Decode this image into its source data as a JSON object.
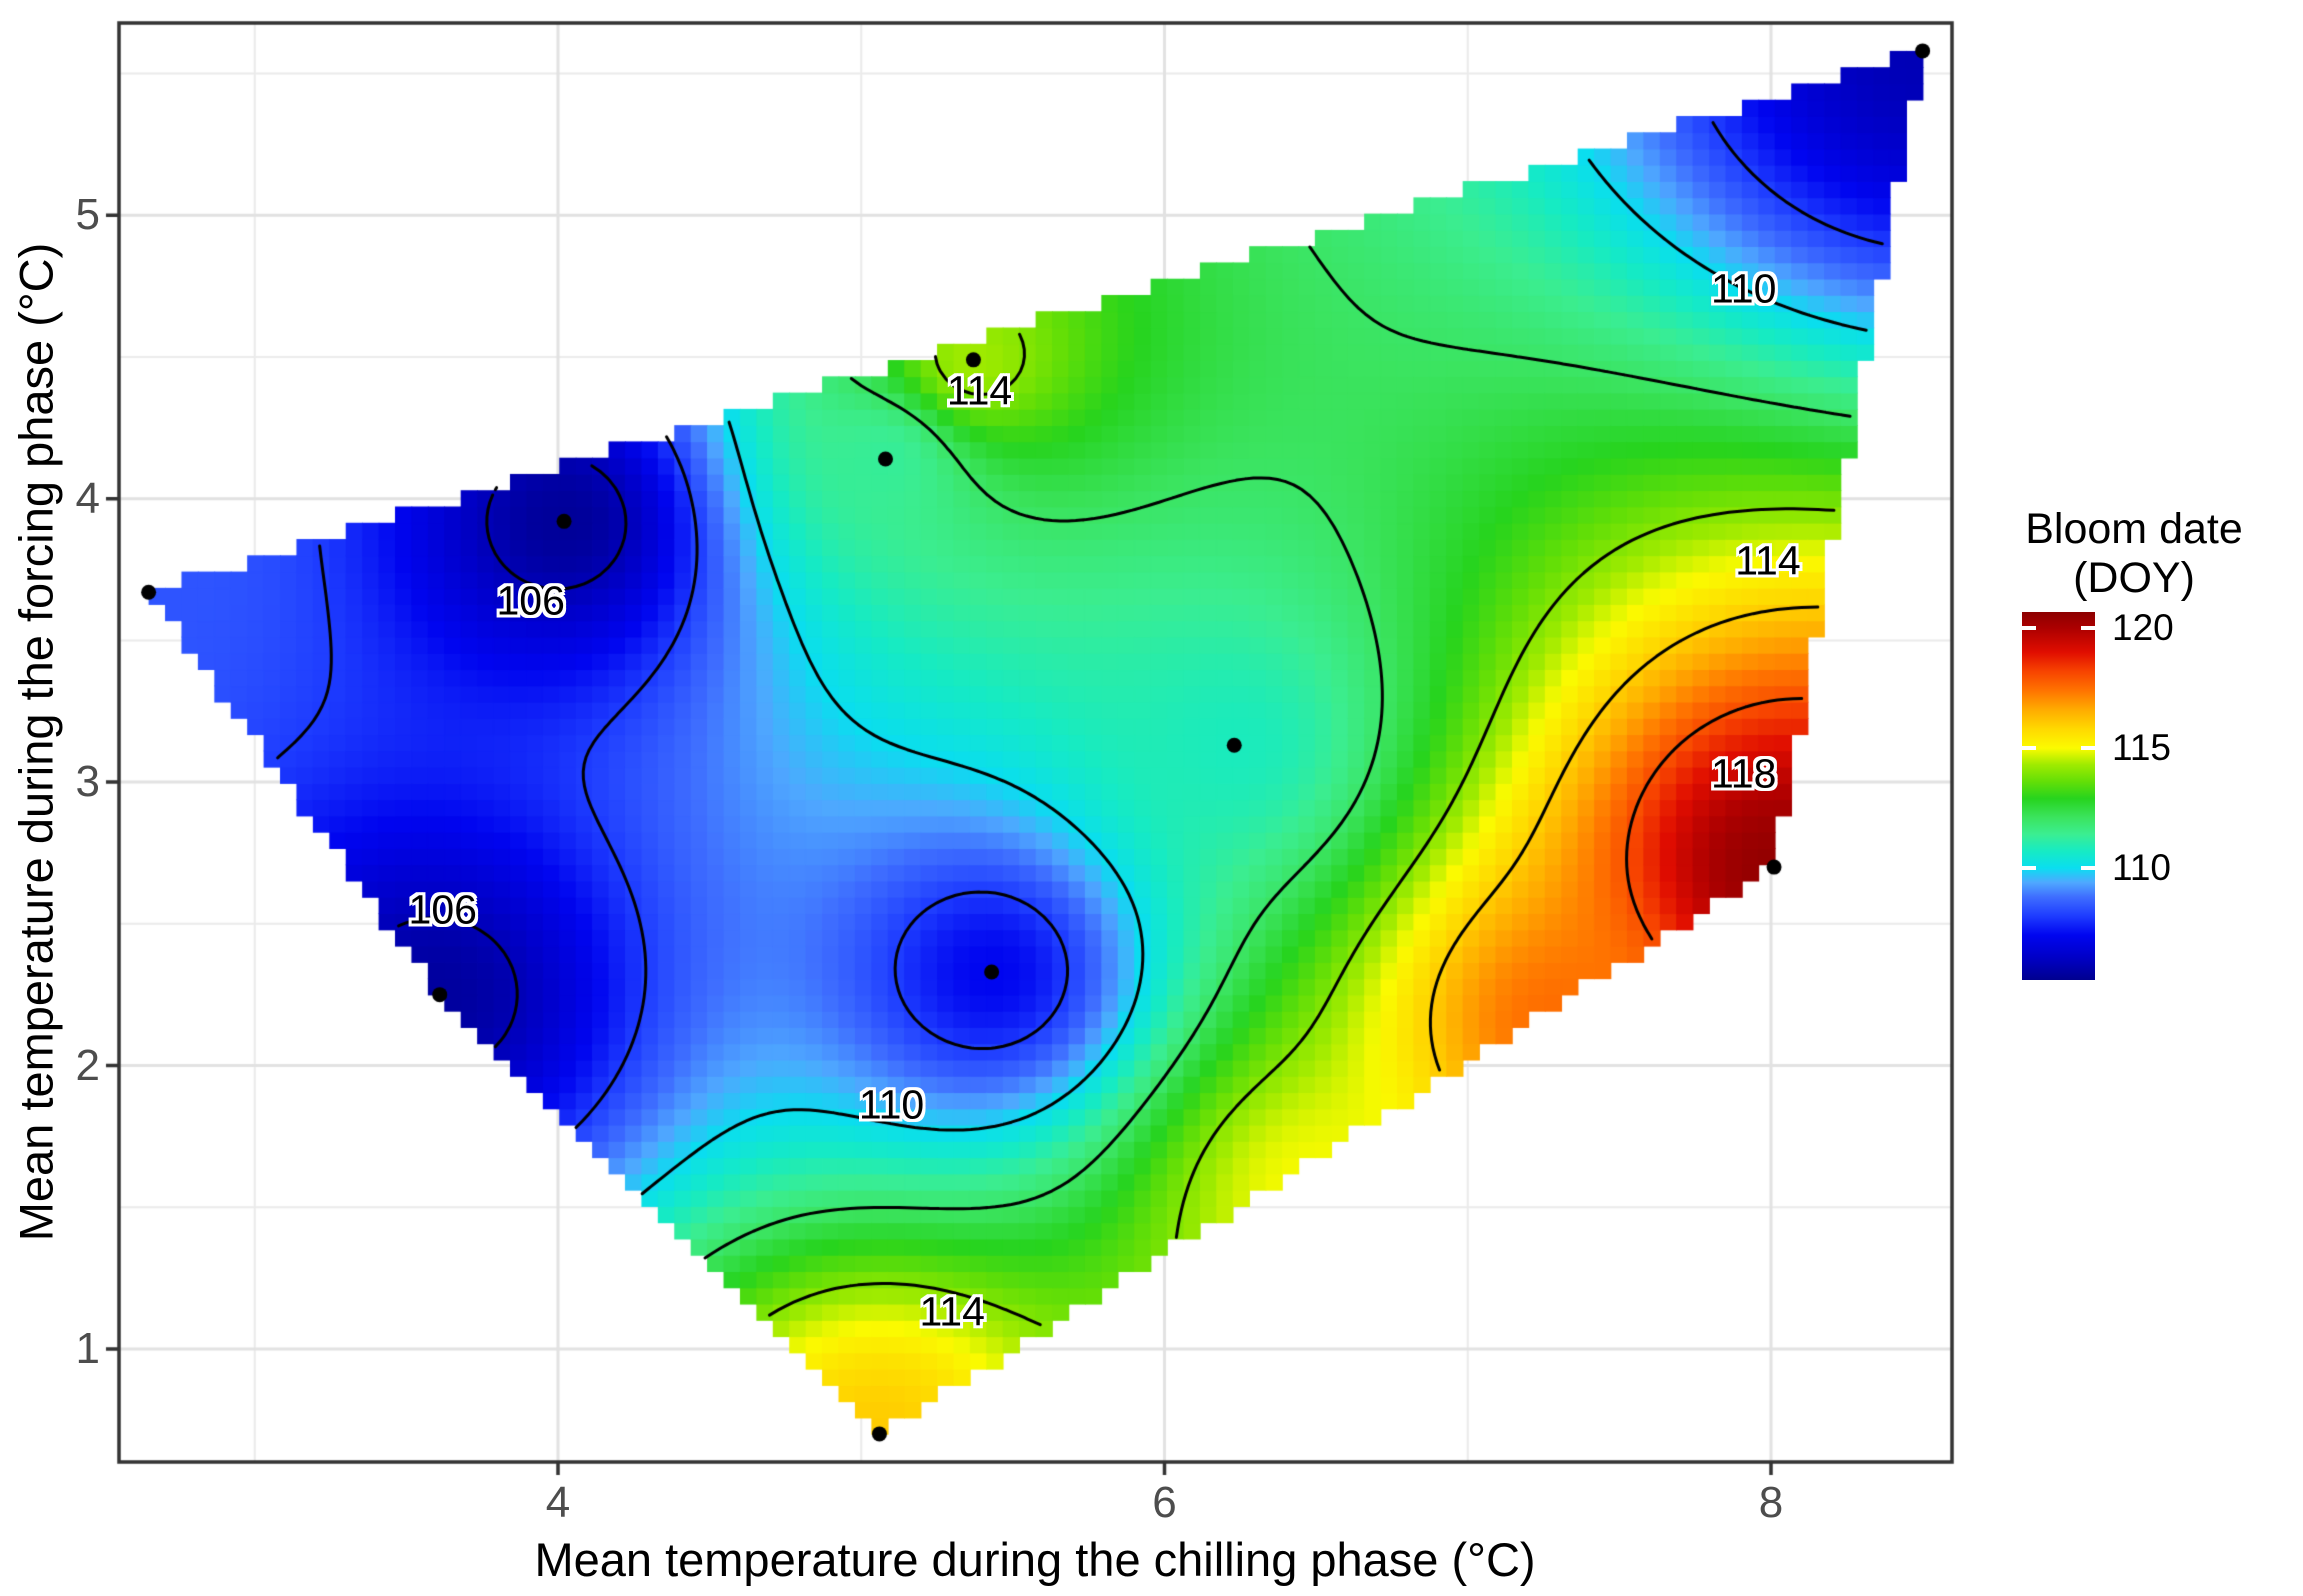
{
  "figure": {
    "description": "Filled contour heatmap of predicted bloom date (day of year) as a function of mean chilling-phase and forcing-phase temperatures"
  },
  "axes": {
    "x": {
      "title": "Mean temperature during the chilling phase (°C)",
      "ticks": [
        {
          "label": "4",
          "value": 4
        },
        {
          "label": "6",
          "value": 6
        },
        {
          "label": "8",
          "value": 8
        }
      ],
      "minor_ticks": [
        3,
        5,
        7
      ],
      "range": [
        2.55,
        8.6
      ]
    },
    "y": {
      "title": "Mean temperature during the forcing phase (°C)",
      "ticks": [
        {
          "label": "5",
          "value": 5
        },
        {
          "label": "4",
          "value": 4
        },
        {
          "label": "3",
          "value": 3
        },
        {
          "label": "2",
          "value": 2
        },
        {
          "label": "1",
          "value": 1
        }
      ],
      "minor_ticks": [
        1.5,
        2.5,
        3.5,
        4.5,
        5.5
      ],
      "range": [
        0.6,
        5.68
      ]
    }
  },
  "legend": {
    "title_line1": "Bloom date",
    "title_line2": "(DOY)",
    "ticks": [
      {
        "label": "120",
        "value": 120
      },
      {
        "label": "115",
        "value": 115
      },
      {
        "label": "110",
        "value": 110
      }
    ],
    "range": [
      105.33,
      120.67
    ]
  },
  "chart_data": {
    "type": "heatmap",
    "title": "",
    "xlabel": "Mean temperature during the chilling phase (°C)",
    "ylabel": "Mean temperature during the forcing phase (°C)",
    "zlabel": "Bloom date (DOY)",
    "xlim": [
      2.55,
      8.6
    ],
    "ylim": [
      0.6,
      5.68
    ],
    "zlim": [
      105.33,
      120.67
    ],
    "grid": "major and minor, light gray on white",
    "legend_position": "right",
    "points": [
      {
        "x": 2.65,
        "y": 3.67,
        "value": 108.4
      },
      {
        "x": 4.02,
        "y": 3.92,
        "value": 105.5
      },
      {
        "x": 5.08,
        "y": 4.14,
        "value": 111.3
      },
      {
        "x": 5.37,
        "y": 4.49,
        "value": 114.3
      },
      {
        "x": 8.5,
        "y": 5.58,
        "value": 106.0
      },
      {
        "x": 6.23,
        "y": 3.13,
        "value": 110.8
      },
      {
        "x": 8.01,
        "y": 2.7,
        "value": 120.5
      },
      {
        "x": 3.61,
        "y": 2.25,
        "value": 105.6
      },
      {
        "x": 5.43,
        "y": 2.33,
        "value": 107.2
      },
      {
        "x": 5.06,
        "y": 0.7,
        "value": 116.0
      }
    ],
    "surface_helpers": [
      {
        "x": 6.5,
        "y": 1.55,
        "value": 115.0
      },
      {
        "x": 7.3,
        "y": 2.15,
        "value": 117.5
      }
    ],
    "hull": [
      [
        2.65,
        3.67
      ],
      [
        8.5,
        5.58
      ],
      [
        8.01,
        2.7
      ],
      [
        5.06,
        0.7
      ],
      [
        3.61,
        2.25
      ]
    ],
    "idw_power": 2.2,
    "contour_levels": [
      106,
      108,
      110,
      112,
      114,
      116,
      118
    ],
    "contour_labels": [
      {
        "text": "106",
        "x": 3.91,
        "y": 3.64
      },
      {
        "text": "106",
        "x": 3.62,
        "y": 2.55
      },
      {
        "text": "110",
        "x": 5.1,
        "y": 1.86
      },
      {
        "text": "114",
        "x": 5.3,
        "y": 1.13
      },
      {
        "text": "114",
        "x": 5.39,
        "y": 4.38
      },
      {
        "text": "110",
        "x": 7.91,
        "y": 4.74
      },
      {
        "text": "114",
        "x": 7.99,
        "y": 3.78
      },
      {
        "text": "118",
        "x": 7.91,
        "y": 3.03
      }
    ],
    "colormap": [
      [
        105.33,
        "#00008F"
      ],
      [
        106.3,
        "#0000C8"
      ],
      [
        107.2,
        "#0005F0"
      ],
      [
        108.0,
        "#1E3CFF"
      ],
      [
        108.8,
        "#3F6EFF"
      ],
      [
        109.4,
        "#4FA8FF"
      ],
      [
        110.0,
        "#0ADEF0"
      ],
      [
        110.7,
        "#16EBC4"
      ],
      [
        111.4,
        "#3BEE91"
      ],
      [
        112.1,
        "#3BE45F"
      ],
      [
        112.9,
        "#27D41E"
      ],
      [
        113.6,
        "#63DF07"
      ],
      [
        114.3,
        "#9FEB00"
      ],
      [
        115.0,
        "#FBFB00"
      ],
      [
        115.8,
        "#FFD800"
      ],
      [
        116.6,
        "#FFAB00"
      ],
      [
        117.4,
        "#FF7300"
      ],
      [
        118.2,
        "#F74300"
      ],
      [
        119.0,
        "#E00D00"
      ],
      [
        120.0,
        "#AC0000"
      ],
      [
        120.67,
        "#8C0000"
      ]
    ],
    "colors": {
      "contour_line": "#000000",
      "point": "#000000",
      "panel_border": "#333333",
      "major_grid": "#E2E2E2",
      "minor_grid": "#EBEBEB",
      "tick_label": "#4d4d4d"
    }
  }
}
